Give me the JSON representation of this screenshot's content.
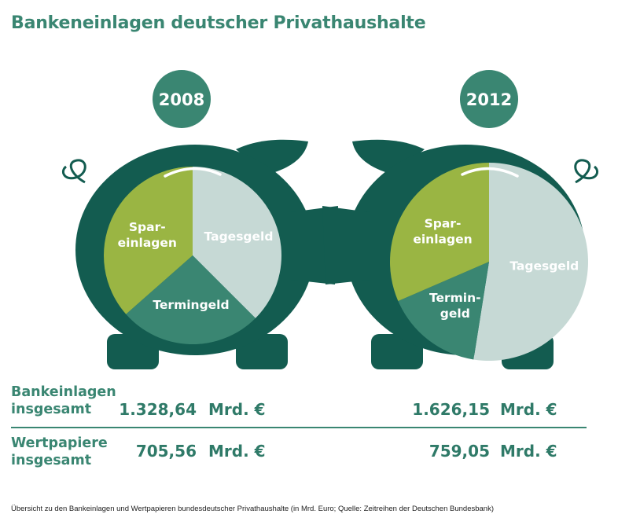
{
  "title": "Bankeneinlagen deutscher Privathaushalte",
  "colors": {
    "dark": "#135c50",
    "mid": "#3a8672",
    "green": "#9ab543",
    "light": "#c6d9d5"
  },
  "chart_data": [
    {
      "type": "pie",
      "year": "2008",
      "slices": [
        {
          "label": "Tagesgeld",
          "value": 37.5,
          "color": "#c6d9d5"
        },
        {
          "label": "Termingeld",
          "value": 26.0,
          "color": "#3a8672"
        },
        {
          "label": "Spar-\neinlagen",
          "value": 36.5,
          "color": "#9ab543"
        }
      ]
    },
    {
      "type": "pie",
      "year": "2012",
      "slices": [
        {
          "label": "Tagesgeld",
          "value": 52.5,
          "color": "#c6d9d5"
        },
        {
          "label": "Termin-\ngeld",
          "value": 16.0,
          "color": "#3a8672"
        },
        {
          "label": "Spar-\neinlagen",
          "value": 31.5,
          "color": "#9ab543"
        }
      ]
    }
  ],
  "table": {
    "rows": [
      {
        "label_line1": "Bankeinlagen",
        "label_line2": "insgesamt",
        "value_2008": "1.328,64",
        "value_2012": "1.626,15",
        "unit": "Mrd. €"
      },
      {
        "label_line1": "Wertpapiere",
        "label_line2": "insgesamt",
        "value_2008": "705,56",
        "value_2012": "759,05",
        "unit": "Mrd. €"
      }
    ]
  },
  "footnote": "Übersicht zu den Bankeinlagen und Wertpapieren bundesdeutscher Privathaushalte (in Mrd. Euro; Quelle: Zeitreihen der Deutschen Bundesbank)"
}
